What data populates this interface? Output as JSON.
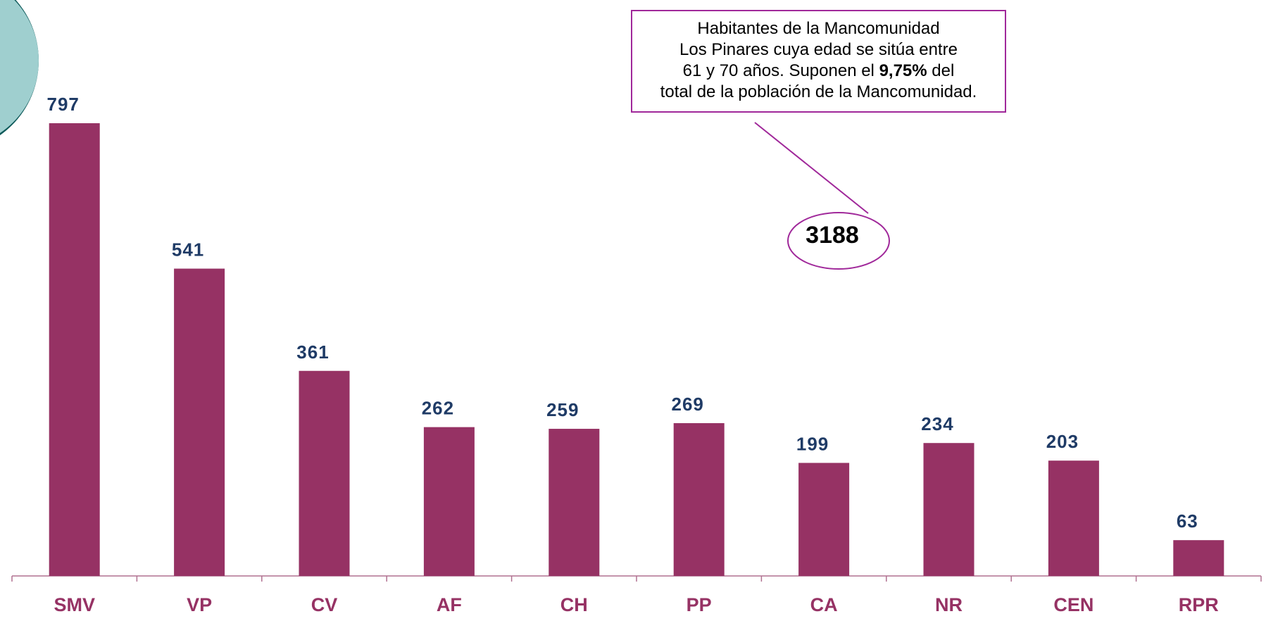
{
  "chart_data": {
    "type": "bar",
    "categories": [
      "SMV",
      "VP",
      "CV",
      "AF",
      "CH",
      "PP",
      "CA",
      "NR",
      "CEN",
      "RPR"
    ],
    "values": [
      797,
      541,
      361,
      262,
      259,
      269,
      199,
      234,
      203,
      63
    ],
    "color": "#963264",
    "label_color": "#1f3b66",
    "annotation": {
      "line1": "Habitantes de la Mancomunidad",
      "line2": "Los Pinares cuya edad se sitúa entre",
      "line3_start": "61 y 70 años. Suponen el",
      "line3_bold": "9,75%",
      "line3_end": "del",
      "line4": "total de la población de la Mancomunidad."
    },
    "total": 3188
  }
}
